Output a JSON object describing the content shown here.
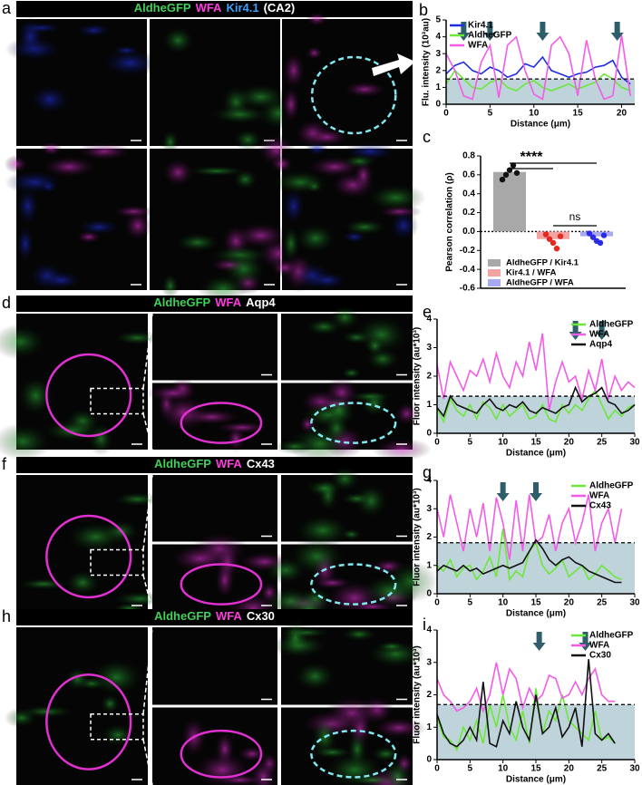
{
  "image_panels": [
    {
      "label": "a",
      "header": [
        {
          "text": "AldheGFP",
          "color": "#3fd15a"
        },
        {
          "text": "WFA",
          "color": "#ff3dde"
        },
        {
          "text": "Kir4.1",
          "color": "#3aa0ff"
        },
        {
          "text": "(CA2)",
          "color": "#ffffff"
        }
      ]
    },
    {
      "label": "d",
      "header": [
        {
          "text": "AldheGFP",
          "color": "#3fd15a"
        },
        {
          "text": "WFA",
          "color": "#ff3dde"
        },
        {
          "text": "Aqp4",
          "color": "#ffffff"
        }
      ]
    },
    {
      "label": "f",
      "header": [
        {
          "text": "AldheGFP",
          "color": "#3fd15a"
        },
        {
          "text": "WFA",
          "color": "#ff3dde"
        },
        {
          "text": "Cx43",
          "color": "#ffffff"
        }
      ]
    },
    {
      "label": "h",
      "header": [
        {
          "text": "AldheGFP",
          "color": "#3fd15a"
        },
        {
          "text": "WFA",
          "color": "#ff3dde"
        },
        {
          "text": "Cx30",
          "color": "#ffffff"
        }
      ]
    }
  ],
  "chart_data": [
    {
      "label": "b",
      "type": "line",
      "xlabel": "Distance (μm)",
      "ylabel": "Flu. intensity (10³au)",
      "x": [
        0,
        1,
        2,
        3,
        4,
        5,
        6,
        7,
        8,
        9,
        10,
        11,
        12,
        13,
        14,
        15,
        16,
        17,
        18,
        19,
        20,
        21
      ],
      "series": [
        {
          "name": "Kir4.1",
          "color": "#1f2fe0",
          "values": [
            1.8,
            2.3,
            2.5,
            2.0,
            1.8,
            2.2,
            2.0,
            1.6,
            1.8,
            2.4,
            2.2,
            2.8,
            2.0,
            1.8,
            1.6,
            1.8,
            1.9,
            2.2,
            2.3,
            2.6,
            1.6,
            1.2
          ]
        },
        {
          "name": "AldheGFP",
          "color": "#6be83a",
          "values": [
            1.2,
            2.0,
            1.5,
            1.0,
            0.9,
            1.3,
            1.5,
            1.0,
            0.8,
            1.2,
            1.4,
            1.0,
            0.8,
            1.0,
            1.2,
            0.9,
            1.1,
            1.3,
            1.8,
            1.5,
            1.0,
            0.8
          ]
        },
        {
          "name": "WFA",
          "color": "#f25ce6",
          "values": [
            3.0,
            2.0,
            0.5,
            0.3,
            2.5,
            3.5,
            0.4,
            3.5,
            4.0,
            2.0,
            0.6,
            0.3,
            3.5,
            4.0,
            3.0,
            0.5,
            3.8,
            1.5,
            0.3,
            0.5,
            4.1,
            0.5
          ]
        }
      ],
      "xlim": [
        0,
        21.5
      ],
      "xticks": [
        0,
        5,
        10,
        15,
        20
      ],
      "ylim": [
        0,
        5
      ],
      "yticks": [
        0,
        1,
        2,
        3,
        4,
        5
      ],
      "threshold": 1.5,
      "arrows_x": [
        2,
        5,
        11,
        19.5
      ],
      "legend": "upper left"
    },
    {
      "label": "c",
      "type": "bar",
      "ylabel": "Pearson correlation (ρ)",
      "categories": [
        "AldheGFP / Kir4.1",
        "Kir4.1 / WFA",
        "AldheGFP / WFA"
      ],
      "values": [
        0.63,
        -0.08,
        -0.05
      ],
      "colors": [
        "#a8a8a8",
        "#f4a3a3",
        "#a9a9f2"
      ],
      "point_colors": [
        "#111111",
        "#e8281f",
        "#2a2ae8"
      ],
      "points": [
        [
          0.55,
          0.6,
          0.65,
          0.7,
          0.62
        ],
        [
          -0.03,
          -0.08,
          -0.12,
          -0.18,
          -0.05
        ],
        [
          -0.02,
          -0.06,
          -0.1,
          -0.12,
          -0.04
        ]
      ],
      "ylim": [
        -0.6,
        0.8
      ],
      "yticks": [
        0.8,
        0.6,
        0.4,
        0.2,
        {
          "value": 0,
          "label": "0.0"
        },
        -0.2,
        -0.4,
        -0.6
      ],
      "annotations": [
        "****",
        "ns"
      ]
    },
    {
      "label": "e",
      "type": "line",
      "xlabel": "Distance (μm)",
      "ylabel": "Fluor intensity (au*10³)",
      "x": [
        0,
        1,
        2,
        3,
        4,
        5,
        6,
        7,
        8,
        9,
        10,
        11,
        12,
        13,
        14,
        15,
        16,
        17,
        18,
        19,
        20,
        21,
        22,
        23,
        24,
        25,
        26,
        27,
        28,
        29,
        30
      ],
      "series": [
        {
          "name": "AldheGFP",
          "color": "#6be83a",
          "values": [
            0.9,
            0.4,
            1.2,
            0.8,
            0.6,
            1.0,
            0.5,
            1.1,
            0.9,
            0.5,
            1.0,
            0.6,
            0.8,
            1.0,
            0.5,
            0.6,
            1.0,
            0.5,
            0.4,
            1.0,
            0.7,
            1.0,
            0.8,
            1.2,
            1.5,
            1.0,
            0.5,
            0.8,
            0.6,
            0.9,
            1.0
          ]
        },
        {
          "name": "WFA",
          "color": "#f25ce6",
          "values": [
            2.4,
            1.2,
            2.5,
            2.0,
            1.5,
            2.2,
            2.0,
            2.6,
            1.8,
            2.8,
            2.0,
            1.6,
            2.5,
            2.0,
            3.2,
            2.2,
            3.5,
            0.8,
            1.8,
            2.5,
            1.8,
            2.0,
            1.2,
            2.2,
            1.5,
            2.6,
            1.2,
            2.0,
            1.5,
            1.8,
            1.6
          ]
        },
        {
          "name": "Aqp4",
          "color": "#111111",
          "values": [
            0.9,
            0.6,
            1.3,
            1.0,
            0.9,
            0.8,
            0.7,
            1.0,
            1.2,
            0.9,
            0.8,
            1.0,
            0.9,
            1.1,
            0.8,
            0.7,
            0.9,
            0.8,
            0.7,
            0.9,
            1.0,
            1.6,
            1.1,
            1.3,
            1.4,
            1.6,
            1.1,
            1.0,
            0.7,
            0.8,
            1.0
          ]
        }
      ],
      "xlim": [
        0,
        30
      ],
      "xticks": [
        0,
        5,
        10,
        15,
        20,
        25,
        30
      ],
      "ylim": [
        0,
        4
      ],
      "yticks": [
        0,
        1,
        2,
        3,
        4
      ],
      "threshold": 1.3,
      "arrows_x": [
        21,
        25
      ],
      "legend": "upper right"
    },
    {
      "label": "g",
      "type": "line",
      "xlabel": "Distance (μm)",
      "ylabel": "Fluor intensity (au*10³)",
      "x": [
        0,
        1,
        2,
        3,
        4,
        5,
        6,
        7,
        8,
        9,
        10,
        11,
        12,
        13,
        14,
        15,
        16,
        17,
        18,
        19,
        20,
        21,
        22,
        23,
        24,
        25,
        26,
        27,
        28
      ],
      "series": [
        {
          "name": "AldheGFP",
          "color": "#6be83a",
          "values": [
            1.0,
            0.8,
            1.2,
            0.6,
            0.9,
            1.0,
            0.5,
            0.8,
            1.3,
            0.6,
            2.3,
            0.5,
            0.8,
            0.6,
            1.5,
            1.8,
            1.0,
            0.7,
            0.9,
            1.2,
            0.6,
            0.8,
            1.0,
            0.5,
            0.7,
            1.0,
            0.8,
            0.6,
            0.5
          ]
        },
        {
          "name": "WFA",
          "color": "#f25ce6",
          "values": [
            3.0,
            2.0,
            3.5,
            2.5,
            1.5,
            3.0,
            2.0,
            3.2,
            1.5,
            3.4,
            2.5,
            1.2,
            3.3,
            1.5,
            3.5,
            1.8,
            2.0,
            2.8,
            1.5,
            2.5,
            3.0,
            1.8,
            2.5,
            3.5,
            1.5,
            2.5,
            3.0,
            1.8,
            3.0
          ]
        },
        {
          "name": "Cx43",
          "color": "#111111",
          "values": [
            0.8,
            1.0,
            0.9,
            0.8,
            1.0,
            0.8,
            0.9,
            0.7,
            0.8,
            0.9,
            1.0,
            0.9,
            1.0,
            1.1,
            1.5,
            1.9,
            1.6,
            1.2,
            1.0,
            1.2,
            1.3,
            1.1,
            1.0,
            0.8,
            0.7,
            0.6,
            0.5,
            0.4,
            0.4
          ]
        }
      ],
      "xlim": [
        0,
        30
      ],
      "xticks": [
        0,
        5,
        10,
        15,
        20,
        25,
        30
      ],
      "ylim": [
        0,
        4
      ],
      "yticks": [
        0,
        1,
        2,
        3,
        4
      ],
      "threshold": 1.8,
      "arrows_x": [
        10,
        15
      ],
      "legend": "upper right"
    },
    {
      "label": "i",
      "type": "line",
      "xlabel": "Distance (μm)",
      "ylabel": "Fluor intensity (au*10³)",
      "x": [
        0,
        1,
        2,
        3,
        4,
        5,
        6,
        7,
        8,
        9,
        10,
        11,
        12,
        13,
        14,
        15,
        16,
        17,
        18,
        19,
        20,
        21,
        22,
        23,
        24,
        25,
        26,
        27
      ],
      "series": [
        {
          "name": "AldheGFP",
          "color": "#6be83a",
          "values": [
            1.3,
            0.7,
            0.6,
            0.3,
            1.0,
            0.6,
            1.2,
            0.5,
            1.7,
            1.0,
            2.0,
            1.0,
            0.6,
            1.5,
            0.5,
            2.2,
            0.8,
            1.5,
            1.2,
            2.0,
            1.2,
            1.0,
            0.8,
            0.6,
            1.5,
            0.6,
            0.7,
            0.5
          ]
        },
        {
          "name": "WFA",
          "color": "#f25ce6",
          "values": [
            2.5,
            2.0,
            1.8,
            1.5,
            1.6,
            1.8,
            2.2,
            1.5,
            2.0,
            3.0,
            2.0,
            2.8,
            2.5,
            1.6,
            2.2,
            1.8,
            2.0,
            2.6,
            2.5,
            1.9,
            2.0,
            2.4,
            2.0,
            2.5,
            2.8,
            2.0,
            1.8,
            1.8
          ]
        },
        {
          "name": "Cx30",
          "color": "#111111",
          "values": [
            1.4,
            0.8,
            0.5,
            0.4,
            0.6,
            1.0,
            0.6,
            2.4,
            0.5,
            0.4,
            1.2,
            0.8,
            1.8,
            1.0,
            0.6,
            2.0,
            0.8,
            1.0,
            1.6,
            0.7,
            1.0,
            1.6,
            0.4,
            3.1,
            0.8,
            0.6,
            0.8,
            0.5
          ]
        }
      ],
      "xlim": [
        0,
        30
      ],
      "xticks": [
        0,
        5,
        10,
        15,
        20,
        25,
        30
      ],
      "ylim": [
        0,
        4
      ],
      "yticks": [
        0,
        1,
        2,
        3,
        4
      ],
      "threshold": 1.7,
      "arrows_x": [
        15.5,
        22.5
      ],
      "legend": "upper right"
    }
  ]
}
